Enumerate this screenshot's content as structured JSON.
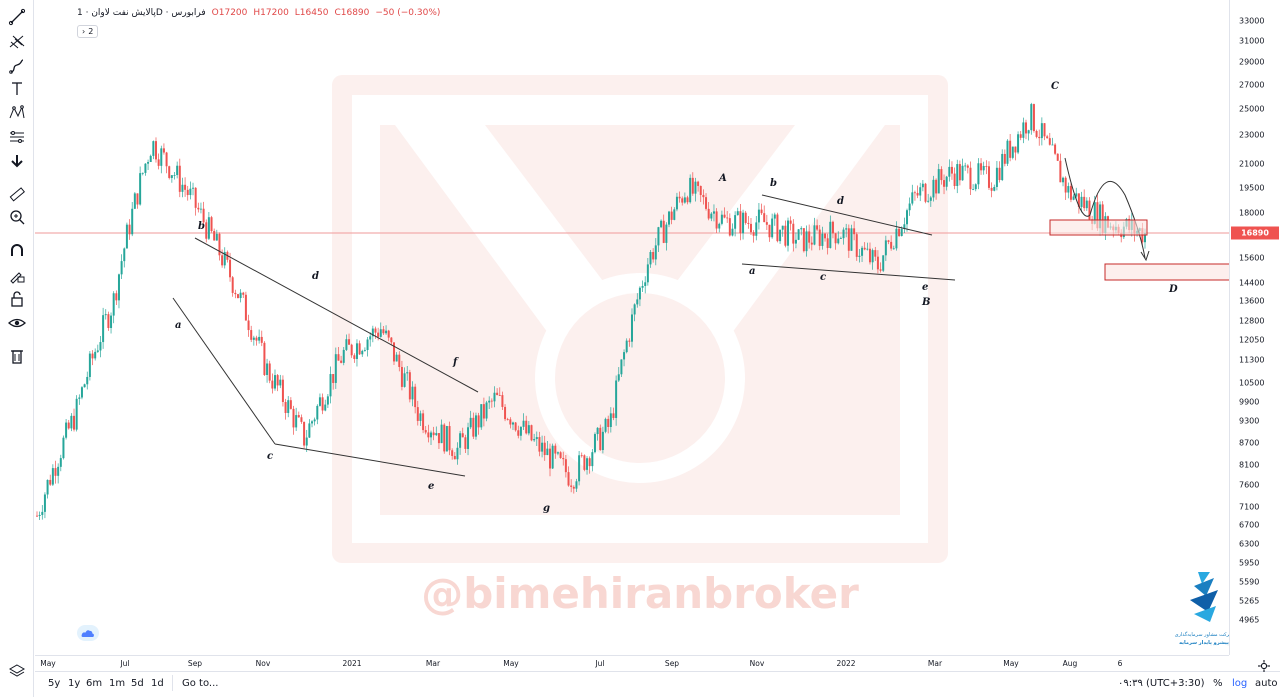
{
  "legend": {
    "symbol": "پالایش نفت لاوان · 1D · فرابورس",
    "open": "O17200",
    "high": "H17200",
    "low": "L16450",
    "close": "C16890",
    "change": "−50 (−0.30%)",
    "collapse_count": "2"
  },
  "toolbar": {
    "tools": [
      "trend-line-icon",
      "pitchfork-icon",
      "brush-icon",
      "text-icon",
      "pattern-icon",
      "prediction-icon",
      "arrow-down-icon",
      "ruler-icon",
      "zoom-in-icon",
      "magnet-icon",
      "lock-drawing-icon",
      "lock-icon",
      "eye-icon",
      "trash-icon"
    ]
  },
  "price_scale": {
    "ticks": [
      "33000",
      "31000",
      "29000",
      "27000",
      "25000",
      "23000",
      "21000",
      "19500",
      "18000",
      "16890",
      "15600",
      "14400",
      "13600",
      "12800",
      "12050",
      "11300",
      "10500",
      "9900",
      "9300",
      "8700",
      "8100",
      "7600",
      "7100",
      "6700",
      "6300",
      "5950",
      "5590",
      "5265",
      "4965"
    ],
    "last_price": "16890",
    "last_price_color": "#ef5350"
  },
  "time_axis": {
    "labels": [
      "May",
      "Jul",
      "Sep",
      "Nov",
      "2021",
      "Mar",
      "May",
      "Jul",
      "Sep",
      "Nov",
      "2022",
      "Mar",
      "May",
      "Aug",
      "6"
    ]
  },
  "bottom_bar": {
    "ranges": [
      "5y",
      "1y",
      "6m",
      "1m",
      "5d",
      "1d"
    ],
    "goto": "Go to...",
    "clock": "۰۹:۳۹ (UTC+3:30)",
    "percent": "%",
    "log": "log",
    "auto": "auto"
  },
  "watermark": {
    "handle": "@bimehiranbroker",
    "logo_text_1": "شرکت مشاور سرمایه‌گذاری",
    "logo_text_2": "پیشرو پایدار سرمایه"
  },
  "annotations": {
    "wave_labels_1": [
      "a",
      "b",
      "c",
      "d",
      "e",
      "f",
      "g"
    ],
    "wave_labels_2": [
      "A",
      "a",
      "b",
      "c",
      "d",
      "e",
      "B",
      "C",
      "D"
    ]
  },
  "chart_data": {
    "type": "candlestick",
    "symbol": "پالایش نفت لاوان",
    "interval": "1D",
    "exchange": "فرابورس",
    "scale": "log",
    "ylim": [
      4700,
      34000
    ],
    "last": 16890,
    "x": [
      "2020-04",
      "2020-05",
      "2020-06",
      "2020-07",
      "2020-08",
      "2020-09",
      "2020-10",
      "2020-11",
      "2020-12",
      "2021-01",
      "2021-02",
      "2021-03",
      "2021-04",
      "2021-05",
      "2021-06",
      "2021-07",
      "2021-08",
      "2021-09",
      "2021-10",
      "2021-11",
      "2021-12",
      "2022-01",
      "2022-02",
      "2022-03",
      "2022-04",
      "2022-05",
      "2022-06",
      "2022-07",
      "2022-08",
      "2022-09"
    ],
    "close": [
      6900,
      9500,
      13600,
      22500,
      19000,
      15000,
      11000,
      8800,
      11500,
      12500,
      9500,
      8500,
      10000,
      8700,
      7800,
      9200,
      15500,
      19500,
      17500,
      17500,
      16500,
      17000,
      15200,
      19000,
      20500,
      20000,
      24500,
      19200,
      17500,
      16890
    ],
    "key_levels": {
      "C": 25500,
      "box_1_top": 17700,
      "box_1_bottom": 16900,
      "D_top": 15200,
      "D_bottom": 14600
    }
  }
}
